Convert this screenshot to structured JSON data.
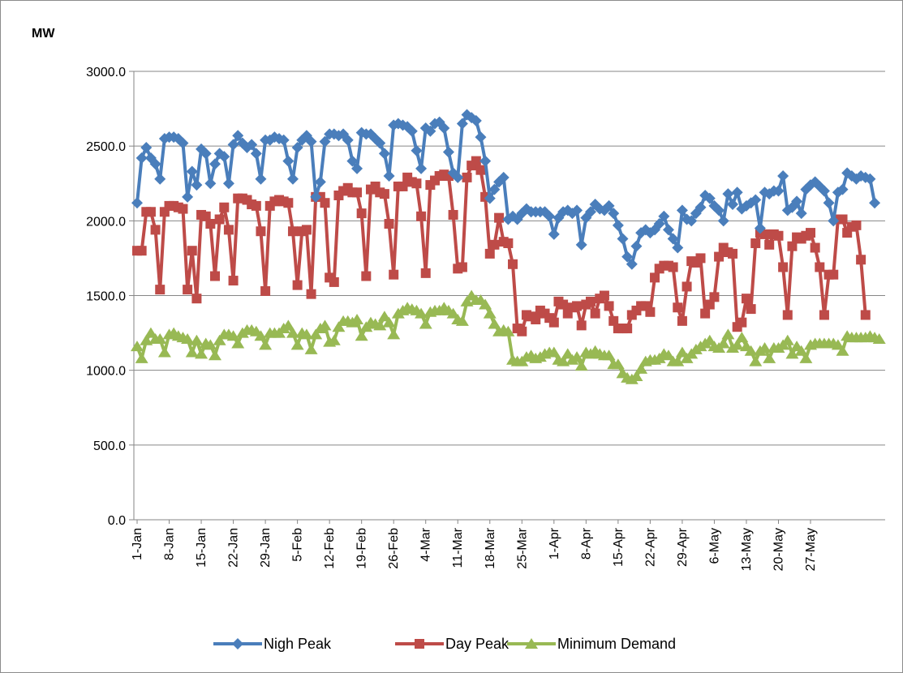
{
  "chart_data": {
    "type": "line",
    "ylabel": "MW",
    "ylim": [
      0,
      3000
    ],
    "y_ticks": [
      "0.0",
      "500.0",
      "1000.0",
      "1500.0",
      "2000.0",
      "2500.0",
      "3000.0"
    ],
    "x_tick_labels": [
      "1-Jan",
      "8-Jan",
      "15-Jan",
      "22-Jan",
      "29-Jan",
      "5-Feb",
      "12-Feb",
      "19-Feb",
      "26-Feb",
      "4-Mar",
      "11-Mar",
      "18-Mar",
      "25-Mar",
      "1-Apr",
      "8-Apr",
      "15-Apr",
      "22-Apr",
      "29-Apr",
      "6-May",
      "13-May",
      "20-May",
      "27-May"
    ],
    "x_tick_interval_days": 7,
    "grid": "horizontal",
    "legend_position": "bottom",
    "series": [
      {
        "name": "Nigh Peak",
        "color": "#4a7ebb",
        "marker": "diamond",
        "values": [
          2120,
          2420,
          2490,
          2420,
          2380,
          2280,
          2550,
          2560,
          2560,
          2550,
          2520,
          2160,
          2330,
          2240,
          2480,
          2450,
          2250,
          2380,
          2450,
          2430,
          2250,
          2510,
          2570,
          2520,
          2490,
          2510,
          2450,
          2280,
          2540,
          2540,
          2560,
          2550,
          2540,
          2400,
          2280,
          2490,
          2540,
          2570,
          2530,
          2160,
          2260,
          2530,
          2580,
          2580,
          2570,
          2580,
          2540,
          2400,
          2350,
          2590,
          2580,
          2580,
          2550,
          2520,
          2450,
          2300,
          2640,
          2650,
          2640,
          2630,
          2600,
          2470,
          2350,
          2620,
          2600,
          2650,
          2660,
          2620,
          2460,
          2320,
          2290,
          2650,
          2710,
          2690,
          2670,
          2560,
          2400,
          2150,
          2210,
          2260,
          2290,
          2010,
          2030,
          2010,
          2050,
          2080,
          2060,
          2060,
          2060,
          2060,
          2030,
          1910,
          2020,
          2060,
          2070,
          2050,
          2070,
          1840,
          2020,
          2060,
          2110,
          2080,
          2070,
          2100,
          2050,
          1970,
          1880,
          1760,
          1710,
          1830,
          1920,
          1940,
          1920,
          1940,
          1980,
          2030,
          1940,
          1880,
          1820,
          2070,
          2010,
          2000,
          2050,
          2090,
          2170,
          2150,
          2100,
          2070,
          2000,
          2180,
          2110,
          2190,
          2080,
          2100,
          2120,
          2140,
          1950,
          2190,
          2180,
          2200,
          2200,
          2300,
          2070,
          2090,
          2130,
          2050,
          2210,
          2240,
          2260,
          2230,
          2200,
          2120,
          2000,
          2190,
          2210,
          2320,
          2300,
          2280,
          2300,
          2290,
          2280,
          2120
        ]
      },
      {
        "name": "Day Peak",
        "color": "#be4b48",
        "marker": "square",
        "values": [
          1800,
          1800,
          2060,
          2060,
          1940,
          1540,
          2060,
          2100,
          2100,
          2090,
          2080,
          1540,
          1800,
          1480,
          2040,
          2030,
          1980,
          1630,
          2010,
          2090,
          1940,
          1600,
          2150,
          2150,
          2140,
          2110,
          2100,
          1930,
          1530,
          2100,
          2130,
          2140,
          2130,
          2120,
          1930,
          1570,
          1930,
          1940,
          1510,
          2160,
          2160,
          2120,
          1620,
          1590,
          2170,
          2200,
          2220,
          2190,
          2190,
          2050,
          1630,
          2210,
          2230,
          2190,
          2180,
          1980,
          1640,
          2230,
          2230,
          2290,
          2260,
          2250,
          2030,
          1650,
          2240,
          2270,
          2300,
          2310,
          2300,
          2040,
          1680,
          1690,
          2290,
          2370,
          2400,
          2340,
          2160,
          1780,
          1840,
          2020,
          1860,
          1850,
          1710,
          1280,
          1260,
          1370,
          1360,
          1340,
          1400,
          1380,
          1350,
          1320,
          1460,
          1440,
          1380,
          1420,
          1430,
          1300,
          1440,
          1460,
          1380,
          1480,
          1500,
          1430,
          1330,
          1280,
          1280,
          1280,
          1370,
          1400,
          1430,
          1430,
          1390,
          1620,
          1680,
          1700,
          1700,
          1690,
          1420,
          1330,
          1560,
          1730,
          1720,
          1750,
          1380,
          1440,
          1490,
          1760,
          1820,
          1790,
          1780,
          1290,
          1320,
          1480,
          1410,
          1850,
          1920,
          1910,
          1840,
          1910,
          1900,
          1690,
          1370,
          1830,
          1890,
          1880,
          1900,
          1920,
          1820,
          1690,
          1370,
          1640,
          1640,
          2010,
          2010,
          1920,
          1960,
          1970,
          1740,
          1370
        ]
      },
      {
        "name": "Minimum Demand",
        "color": "#98b954",
        "marker": "triangle",
        "values": [
          1160,
          1080,
          1200,
          1250,
          1210,
          1210,
          1120,
          1240,
          1250,
          1230,
          1220,
          1210,
          1120,
          1200,
          1110,
          1180,
          1170,
          1100,
          1200,
          1240,
          1240,
          1230,
          1180,
          1250,
          1270,
          1270,
          1260,
          1230,
          1170,
          1250,
          1250,
          1250,
          1280,
          1300,
          1250,
          1170,
          1250,
          1240,
          1140,
          1240,
          1280,
          1300,
          1190,
          1200,
          1290,
          1330,
          1330,
          1320,
          1340,
          1230,
          1290,
          1320,
          1310,
          1300,
          1360,
          1320,
          1240,
          1380,
          1400,
          1420,
          1410,
          1400,
          1380,
          1310,
          1390,
          1400,
          1400,
          1420,
          1400,
          1380,
          1340,
          1330,
          1460,
          1500,
          1470,
          1470,
          1440,
          1380,
          1310,
          1260,
          1270,
          1260,
          1070,
          1060,
          1060,
          1090,
          1100,
          1080,
          1090,
          1110,
          1120,
          1120,
          1070,
          1060,
          1110,
          1070,
          1090,
          1030,
          1120,
          1110,
          1130,
          1110,
          1100,
          1100,
          1040,
          1040,
          980,
          950,
          940,
          960,
          1010,
          1060,
          1070,
          1070,
          1080,
          1110,
          1100,
          1060,
          1060,
          1120,
          1080,
          1110,
          1140,
          1160,
          1180,
          1200,
          1160,
          1150,
          1180,
          1240,
          1150,
          1170,
          1220,
          1160,
          1130,
          1060,
          1130,
          1150,
          1080,
          1150,
          1150,
          1170,
          1200,
          1110,
          1160,
          1130,
          1080,
          1170,
          1180,
          1180,
          1180,
          1180,
          1180,
          1170,
          1130,
          1230,
          1220,
          1220,
          1220,
          1220,
          1230,
          1220,
          1210
        ]
      }
    ]
  }
}
